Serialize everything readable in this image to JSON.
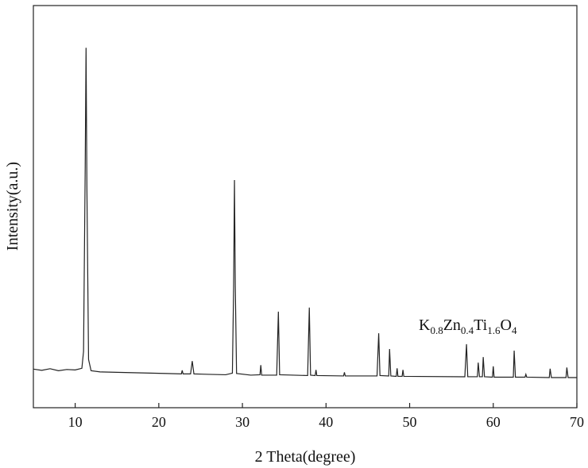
{
  "chart_data": {
    "type": "line",
    "x_label": "2 Theta(degree)",
    "y_label": "Intensity(a.u.)",
    "annotation": [
      "K",
      "0.8",
      "Zn",
      "0.4",
      "Ti",
      "1.6",
      "O",
      "4"
    ],
    "xlim": [
      5,
      70
    ],
    "ylim": [
      0,
      100
    ],
    "xticks": [
      10,
      20,
      30,
      40,
      50,
      60,
      70
    ],
    "color": "#222222",
    "x": [
      5,
      6,
      7,
      8,
      9,
      10,
      10.8,
      11.0,
      11.2,
      11.3,
      11.4,
      11.6,
      11.9,
      13,
      15,
      17,
      19,
      21,
      22.7,
      22.8,
      22.9,
      23.8,
      24,
      24.2,
      26,
      28,
      28.8,
      28.95,
      29.05,
      29.15,
      29.3,
      31,
      32.1,
      32.2,
      32.3,
      34.1,
      34.3,
      34.45,
      37.8,
      38,
      38.15,
      38.7,
      38.8,
      38.9,
      42.1,
      42.2,
      42.3,
      46.1,
      46.3,
      46.45,
      47.5,
      47.6,
      47.75,
      48.4,
      48.5,
      48.6,
      49.1,
      49.2,
      49.3,
      56.6,
      56.8,
      56.95,
      58.1,
      58.2,
      58.35,
      58.7,
      58.8,
      58.95,
      59.9,
      60,
      60.1,
      62.4,
      62.5,
      62.65,
      63.8,
      63.9,
      64,
      66.7,
      66.8,
      66.95,
      68.7,
      68.8,
      68.95,
      70
    ],
    "values": [
      9.6,
      9.3,
      9.7,
      9.2,
      9.5,
      9.4,
      9.8,
      14,
      60,
      89.5,
      55,
      12,
      9.2,
      8.9,
      8.8,
      8.7,
      8.6,
      8.5,
      8.4,
      9.3,
      8.4,
      8.4,
      11.6,
      8.4,
      8.3,
      8.2,
      8.6,
      30,
      56.6,
      30,
      8.5,
      8.1,
      8.2,
      10.6,
      8.1,
      8.1,
      23.9,
      8.2,
      8,
      24.9,
      8.1,
      8,
      9.4,
      8,
      7.9,
      8.8,
      7.9,
      7.9,
      18.5,
      8,
      7.9,
      14.6,
      7.9,
      7.8,
      9.8,
      7.8,
      7.8,
      9.4,
      7.8,
      7.7,
      15.8,
      7.7,
      7.7,
      11.2,
      7.7,
      7.7,
      12.6,
      7.7,
      7.6,
      10.3,
      7.6,
      7.6,
      14.2,
      7.6,
      7.6,
      8.3,
      7.6,
      7.5,
      9.7,
      7.5,
      7.5,
      10,
      7.5,
      7.5
    ]
  }
}
